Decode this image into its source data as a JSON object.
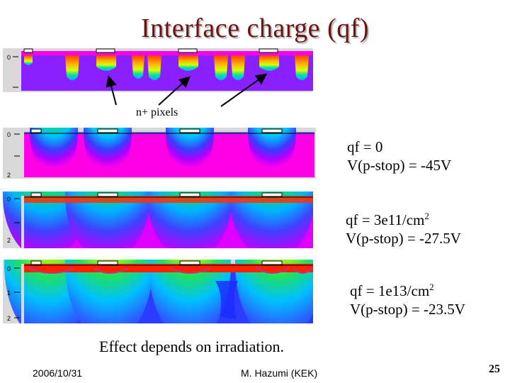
{
  "title": "Interface charge (qf)",
  "pixel_callout": "n+ pixels",
  "panels": [
    {
      "ticks": [
        "0"
      ],
      "background": "#8a1fff"
    },
    {
      "ticks": [
        "0",
        "2"
      ],
      "background": "#ff00e6"
    },
    {
      "ticks": [
        "0",
        "2"
      ],
      "background": "#ff00e6"
    },
    {
      "ticks": [
        "0",
        "1",
        "2"
      ],
      "background": "#2a3cff"
    }
  ],
  "conditions": [
    {
      "qf_text": "qf = 0",
      "qf_unit_sup": "",
      "vstop": "V(p-stop) = -45V"
    },
    {
      "qf_text": "qf = 3e11/cm",
      "qf_unit_sup": "2",
      "vstop": "V(p-stop) = -27.5V"
    },
    {
      "qf_text": "qf = 1e13/cm",
      "qf_unit_sup": "2",
      "vstop": "V(p-stop) = -23.5V"
    }
  ],
  "caption": "Effect depends on irradiation.",
  "footer": {
    "date": "2006/10/31",
    "author": "M. Hazumi (KEK)",
    "page": "25"
  }
}
